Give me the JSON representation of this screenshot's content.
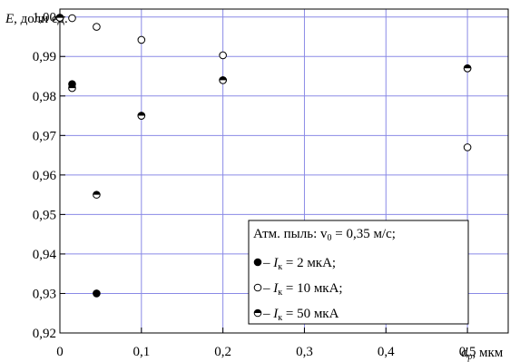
{
  "chart_data": {
    "type": "scatter",
    "y_axis": {
      "label_var": "E",
      "label_rest": ", доли ед.",
      "ticks": [
        {
          "value": 1.0,
          "label": "1,00"
        },
        {
          "value": 0.99,
          "label": "0,99"
        },
        {
          "value": 0.98,
          "label": "0,98"
        },
        {
          "value": 0.97,
          "label": "0,97"
        },
        {
          "value": 0.96,
          "label": "0,96"
        },
        {
          "value": 0.95,
          "label": "0,95"
        },
        {
          "value": 0.94,
          "label": "0,94"
        },
        {
          "value": 0.93,
          "label": "0,93"
        },
        {
          "value": 0.92,
          "label": "0,92"
        }
      ],
      "ylim": [
        0.92,
        1.002
      ]
    },
    "x_axis": {
      "label_var": "d",
      "label_sub": "p",
      "label_rest": ", мкм",
      "ticks": [
        {
          "value": 0,
          "label": "0"
        },
        {
          "value": 0.1,
          "label": "0,1"
        },
        {
          "value": 0.2,
          "label": "0,2"
        },
        {
          "value": 0.3,
          "label": "0,3"
        },
        {
          "value": 0.4,
          "label": "0,4"
        },
        {
          "value": 0.5,
          "label": "0,5"
        }
      ],
      "xlim": [
        0,
        0.55
      ]
    },
    "grid": true,
    "legend": {
      "position": "bottom-right",
      "title": "Атм. пыль: v",
      "title_sub": "0",
      "title_rest": " = 0,35 м/с;",
      "entries": [
        {
          "marker": "filled",
          "dash": " – ",
          "var": "I",
          "sub": "к",
          "text": " = 2 мкА;"
        },
        {
          "marker": "open",
          "dash": " – ",
          "var": "I",
          "sub": "к",
          "text": " = 10 мкА;"
        },
        {
          "marker": "half",
          "dash": " – ",
          "var": "I",
          "sub": "к",
          "text": " = 50 мкА"
        }
      ]
    },
    "series": [
      {
        "marker": "filled",
        "points": [
          {
            "x": 0.0,
            "y": 0.9998
          },
          {
            "x": 0.015,
            "y": 0.983
          },
          {
            "x": 0.045,
            "y": 0.93
          },
          {
            "x": 0.1,
            "y": 0.975
          },
          {
            "x": 0.2,
            "y": 0.984
          },
          {
            "x": 0.5,
            "y": 0.987
          }
        ]
      },
      {
        "marker": "open",
        "points": [
          {
            "x": 0.0,
            "y": 0.9998
          },
          {
            "x": 0.015,
            "y": 0.9997
          },
          {
            "x": 0.045,
            "y": 0.9975
          },
          {
            "x": 0.1,
            "y": 0.9942
          },
          {
            "x": 0.2,
            "y": 0.9903
          },
          {
            "x": 0.5,
            "y": 0.967
          }
        ]
      },
      {
        "marker": "half",
        "points": [
          {
            "x": 0.0,
            "y": 0.9998
          },
          {
            "x": 0.015,
            "y": 0.982
          },
          {
            "x": 0.045,
            "y": 0.955
          },
          {
            "x": 0.1,
            "y": 0.975
          },
          {
            "x": 0.2,
            "y": 0.984
          },
          {
            "x": 0.5,
            "y": 0.987
          }
        ]
      }
    ]
  }
}
